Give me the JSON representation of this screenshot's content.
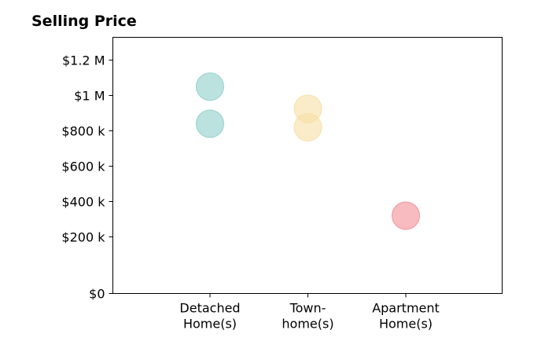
{
  "chart_data": {
    "type": "scatter",
    "title": "Selling Price",
    "xlabel": "",
    "ylabel": "",
    "categories": [
      [
        "Detached",
        "Home(s)"
      ],
      [
        "Town-",
        "home(s)"
      ],
      [
        "Apartment",
        "Home(s)"
      ]
    ],
    "ylim": [
      0,
      1200000
    ],
    "ytick_values": [
      0,
      200000,
      400000,
      600000,
      800000,
      1000000,
      1200000
    ],
    "ytick_labels": [
      "$0",
      "$200 k",
      "$400 k",
      "$600 k",
      "$800 k",
      "$1 M",
      "$1.2 M"
    ],
    "grid": false,
    "legend": "none",
    "points": [
      {
        "category_index": 0,
        "value": 1050000,
        "color": "#8ecfc9"
      },
      {
        "category_index": 0,
        "value": 840000,
        "color": "#8ecfc9"
      },
      {
        "category_index": 1,
        "value": 925000,
        "color": "#f6dfa4"
      },
      {
        "category_index": 1,
        "value": 820000,
        "color": "#f6dfa4"
      },
      {
        "category_index": 2,
        "value": 320000,
        "color": "#f28d96"
      }
    ]
  }
}
